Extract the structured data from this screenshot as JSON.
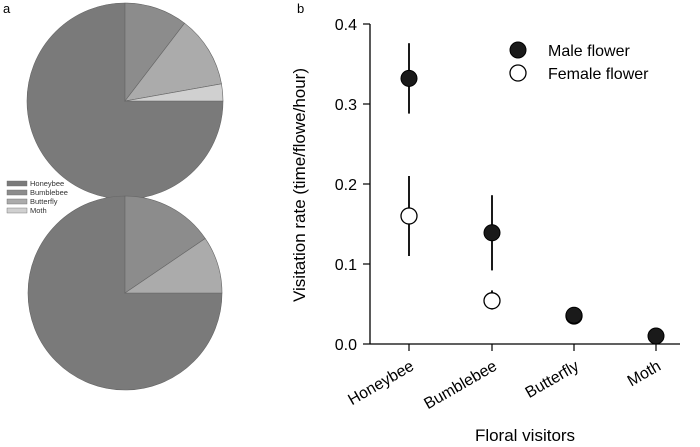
{
  "panels": {
    "a": "a",
    "b": "b"
  },
  "chart_data": [
    {
      "type": "pie",
      "panel": "a",
      "subplot": "top",
      "categories": [
        "Honeybee",
        "Bumblebee",
        "Butterfly",
        "Moth"
      ],
      "values": [
        0.75,
        0.104,
        0.118,
        0.028
      ],
      "colors": [
        "#7a7a7a",
        "#8c8c8c",
        "#ababab",
        "#d0d0d0"
      ]
    },
    {
      "type": "pie",
      "panel": "a",
      "subplot": "bottom",
      "categories": [
        "Honeybee",
        "Bumblebee",
        "Butterfly",
        "Moth"
      ],
      "values": [
        0.75,
        0.155,
        0.095,
        0.0
      ],
      "colors": [
        "#7a7a7a",
        "#8c8c8c",
        "#ababab",
        "#d0d0d0"
      ]
    },
    {
      "type": "scatter",
      "panel": "b",
      "categories": [
        "Honeybee",
        "Bumblebee",
        "Butterfly",
        "Moth"
      ],
      "series": [
        {
          "name": "Male flower",
          "fill": "#1a1a1a",
          "values": [
            0.332,
            0.139,
            0.036,
            0.01
          ],
          "err_low": [
            0.288,
            0.092,
            null,
            null
          ],
          "err_high": [
            0.376,
            0.186,
            null,
            null
          ]
        },
        {
          "name": "Female flower",
          "fill": "#ffffff",
          "values": [
            0.16,
            0.054,
            0.035,
            null
          ],
          "err_low": [
            0.11,
            0.043,
            0.03,
            null
          ],
          "err_high": [
            0.21,
            0.067,
            0.04,
            null
          ]
        }
      ],
      "xlabel": "Floral visitors",
      "ylabel": "Visitation rate (time/flowe/hour)",
      "ylim": [
        0.0,
        0.4
      ],
      "yticks": [
        "0.0",
        "0.1",
        "0.2",
        "0.3",
        "0.4"
      ],
      "yticks_values": [
        0.0,
        0.1,
        0.2,
        0.3,
        0.4
      ],
      "legend_position": "top-right"
    }
  ]
}
